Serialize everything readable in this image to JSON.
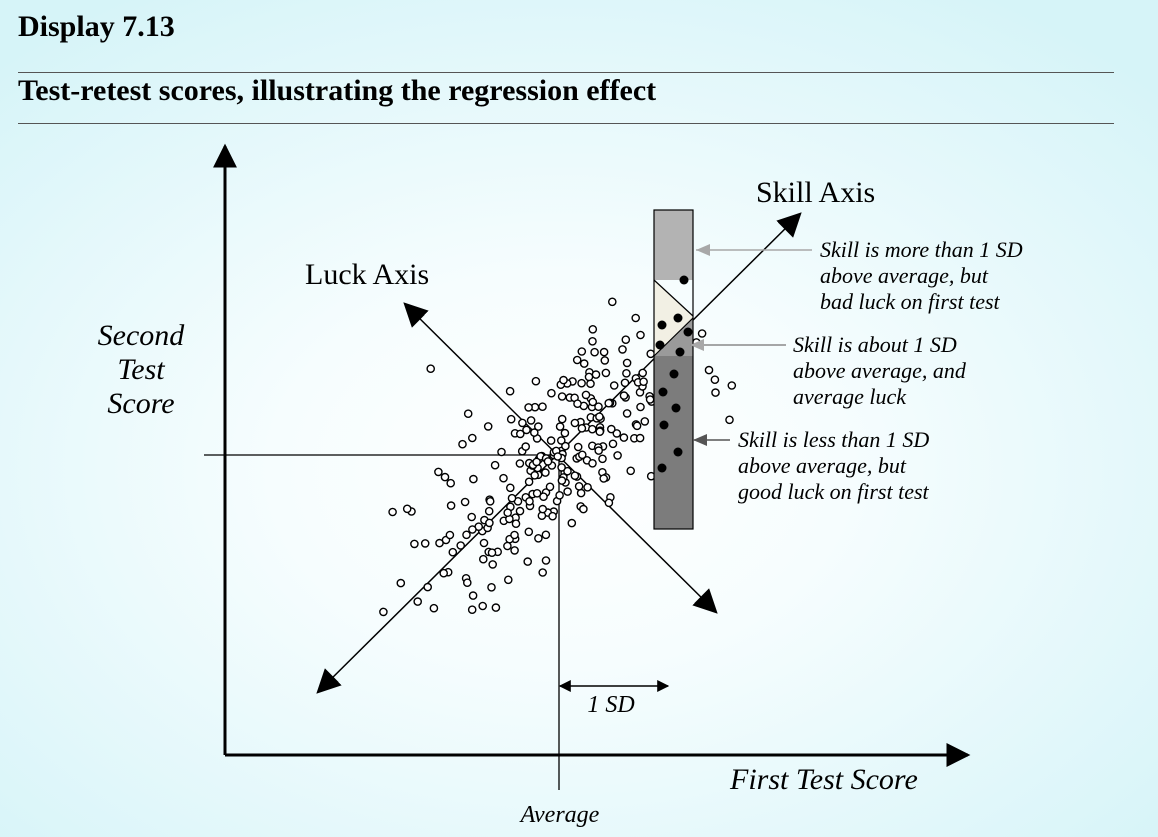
{
  "display_label": "Display 7.13",
  "figure_title": "Test-retest scores, illustrating the regression effect",
  "axes": {
    "x_label": "First Test Score",
    "y_label_lines": [
      "Second",
      "Test",
      "Score"
    ],
    "average_label": "Average",
    "sd_label": "1 SD"
  },
  "diagonal_axes": {
    "skill_label": "Skill Axis",
    "luck_label": "Luck Axis"
  },
  "annotations": {
    "top": [
      "Skill is more than 1 SD",
      "above average, but",
      "bad luck on first test"
    ],
    "middle": [
      "Skill is about 1 SD",
      "above average, and",
      "average luck"
    ],
    "bottom": [
      "Skill is less than 1 SD",
      "above average, but",
      "good luck on first test"
    ]
  },
  "colors": {
    "bar_top": "#b3b3b3",
    "bar_middle": "#f2f0e4",
    "bar_bottom": "#7c7c7c",
    "arrow_light": "#a8a8a8",
    "arrow_mid": "#8a8a8a",
    "arrow_dark": "#555555"
  }
}
